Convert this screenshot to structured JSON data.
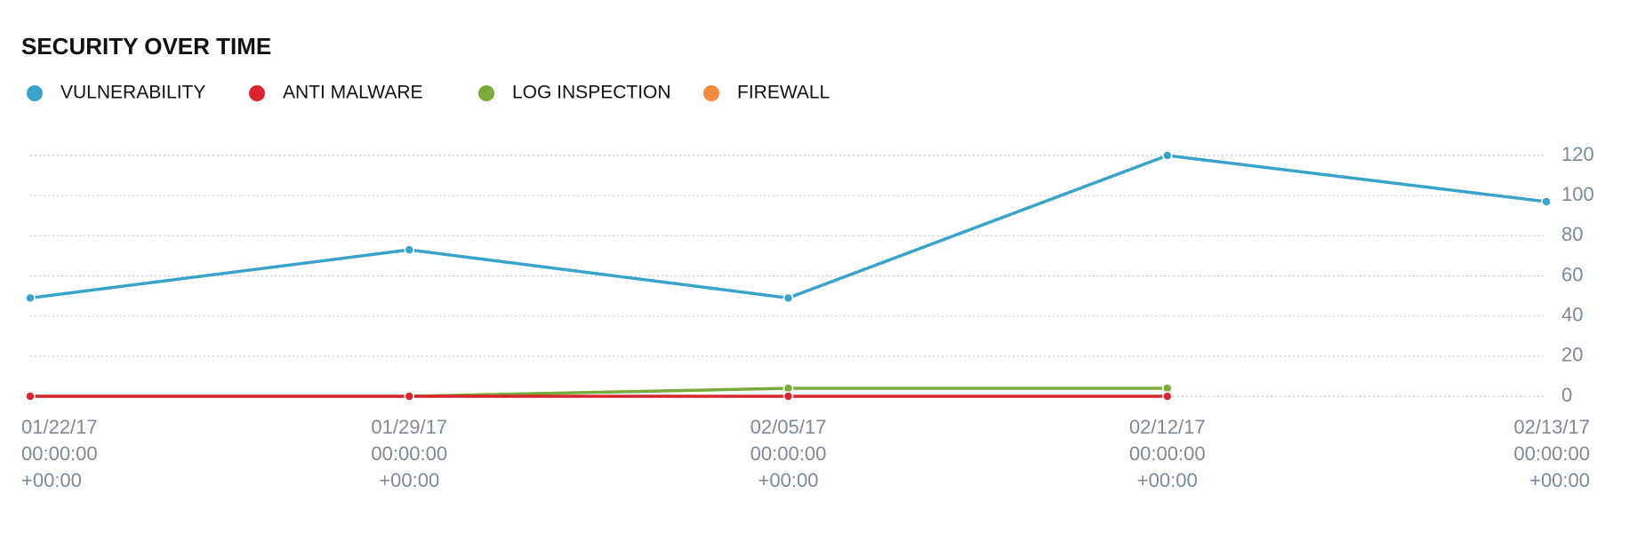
{
  "chart_data": {
    "type": "line",
    "title": "SECURITY OVER TIME",
    "categories": [
      [
        "01/22/17",
        "00:00:00",
        "+00:00"
      ],
      [
        "01/29/17",
        "00:00:00",
        "+00:00"
      ],
      [
        "02/05/17",
        "00:00:00",
        "+00:00"
      ],
      [
        "02/12/17",
        "00:00:00",
        "+00:00"
      ],
      [
        "02/13/17",
        "00:00:00",
        "+00:00"
      ]
    ],
    "series": [
      {
        "name": "VULNERABILITY",
        "color": "#3aa3cc",
        "values": [
          49,
          73,
          49,
          120,
          97
        ]
      },
      {
        "name": "ANTI MALWARE",
        "color": "#d9262e",
        "values": [
          0,
          0,
          0,
          0,
          null
        ]
      },
      {
        "name": "LOG INSPECTION",
        "color": "#7aab3a",
        "values": [
          0,
          0,
          4,
          4,
          null
        ]
      },
      {
        "name": "FIREWALL",
        "color": "#f08a3c",
        "values": [
          null,
          null,
          null,
          null,
          null
        ]
      }
    ],
    "ylim": [
      0,
      120
    ],
    "yticks": [
      0,
      20,
      40,
      60,
      80,
      100,
      120
    ],
    "grid": true
  }
}
